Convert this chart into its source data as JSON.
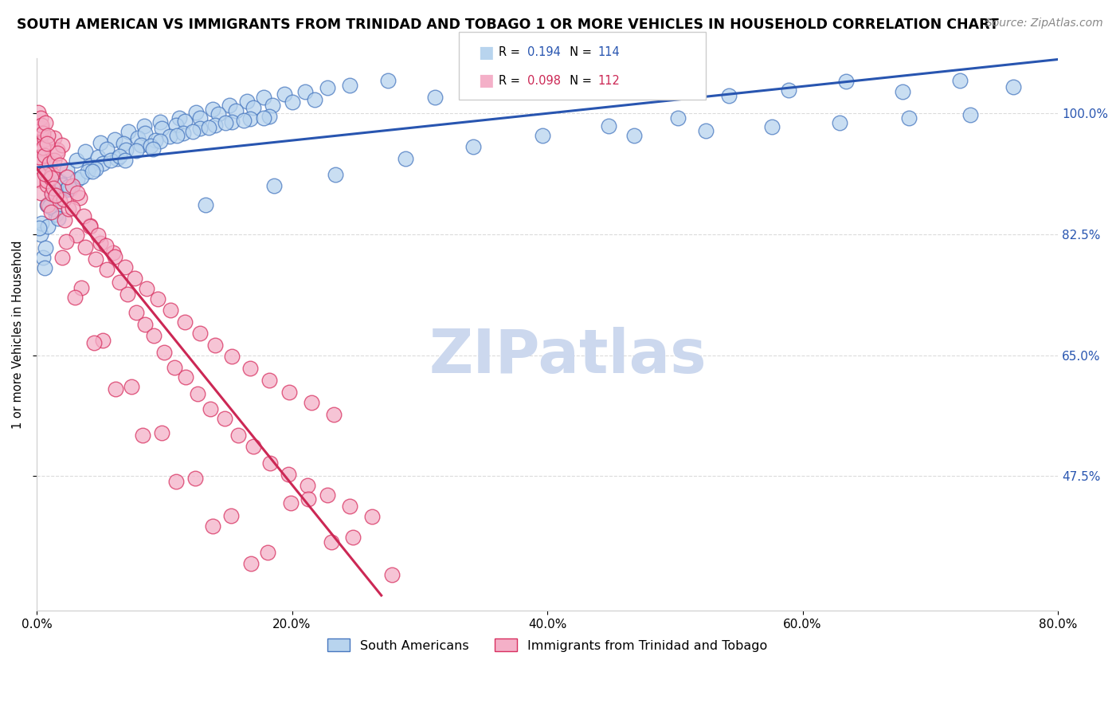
{
  "title": "SOUTH AMERICAN VS IMMIGRANTS FROM TRINIDAD AND TOBAGO 1 OR MORE VEHICLES IN HOUSEHOLD CORRELATION CHART",
  "source": "Source: ZipAtlas.com",
  "ylabel": "1 or more Vehicles in Household",
  "xlim": [
    0.0,
    80.0
  ],
  "ylim": [
    28.0,
    108.0
  ],
  "yticks": [
    47.5,
    65.0,
    82.5,
    100.0
  ],
  "xticks": [
    0.0,
    20.0,
    40.0,
    60.0,
    80.0
  ],
  "blue_R": 0.194,
  "blue_N": 114,
  "pink_R": 0.098,
  "pink_N": 112,
  "legend_labels": [
    "South Americans",
    "Immigrants from Trinidad and Tobago"
  ],
  "blue_color": "#b8d4ee",
  "pink_color": "#f4b0c8",
  "blue_edge_color": "#4878c0",
  "pink_edge_color": "#d83060",
  "blue_line_color": "#2855b0",
  "pink_line_color": "#cc2855",
  "watermark_color": "#ccd8ee",
  "title_fontsize": 12.5,
  "source_fontsize": 10,
  "blue_scatter_x": [
    0.3,
    0.5,
    0.8,
    0.4,
    1.2,
    0.6,
    1.8,
    0.9,
    2.4,
    1.5,
    3.1,
    0.7,
    2.0,
    1.1,
    3.8,
    1.4,
    4.2,
    2.3,
    5.0,
    1.7,
    4.8,
    3.2,
    6.1,
    2.6,
    5.5,
    4.0,
    7.2,
    3.5,
    6.8,
    5.2,
    8.4,
    4.6,
    7.9,
    6.3,
    9.7,
    5.8,
    8.5,
    7.0,
    11.2,
    6.5,
    9.8,
    8.2,
    12.5,
    7.8,
    10.9,
    9.3,
    13.8,
    8.9,
    11.6,
    10.4,
    15.1,
    9.7,
    12.8,
    11.5,
    16.5,
    11.0,
    14.2,
    12.8,
    17.8,
    12.2,
    15.6,
    14.0,
    19.4,
    13.5,
    17.0,
    15.3,
    21.0,
    14.8,
    18.5,
    16.7,
    22.8,
    16.2,
    20.0,
    18.2,
    24.5,
    17.8,
    21.8,
    27.5,
    31.2,
    35.8,
    40.4,
    45.1,
    49.8,
    54.2,
    58.9,
    63.4,
    67.8,
    72.3,
    76.5,
    46.8,
    52.4,
    57.6,
    62.9,
    68.3,
    73.1,
    0.2,
    1.0,
    2.5,
    4.4,
    6.9,
    9.1,
    13.2,
    18.6,
    23.4,
    28.9,
    34.2,
    39.6,
    44.8,
    50.2
  ],
  "blue_scatter_y": [
    82.5,
    79.2,
    86.8,
    84.1,
    88.4,
    77.6,
    90.2,
    83.7,
    91.8,
    85.4,
    93.2,
    80.5,
    89.6,
    87.3,
    94.5,
    86.2,
    92.4,
    88.9,
    95.8,
    84.8,
    93.7,
    90.4,
    96.2,
    89.1,
    94.8,
    91.6,
    97.4,
    90.8,
    95.6,
    92.8,
    98.2,
    91.9,
    96.4,
    93.5,
    98.8,
    93.2,
    97.1,
    94.7,
    99.4,
    93.8,
    97.8,
    95.4,
    100.1,
    94.6,
    98.3,
    96.1,
    100.6,
    95.3,
    98.9,
    96.7,
    101.2,
    96.0,
    99.4,
    97.2,
    101.8,
    96.8,
    99.9,
    97.8,
    102.3,
    97.4,
    100.4,
    98.3,
    102.8,
    98.0,
    100.8,
    98.8,
    103.2,
    98.6,
    101.2,
    99.2,
    103.7,
    99.0,
    101.6,
    99.6,
    104.1,
    99.4,
    102.0,
    104.8,
    102.4,
    103.5,
    104.2,
    103.8,
    104.9,
    102.6,
    103.4,
    104.6,
    103.2,
    104.8,
    103.9,
    96.8,
    97.5,
    98.1,
    98.7,
    99.3,
    99.8,
    83.4,
    86.5,
    89.4,
    91.6,
    93.2,
    94.8,
    86.8,
    89.5,
    91.2,
    93.5,
    95.2,
    96.8,
    98.2,
    99.4
  ],
  "pink_scatter_x": [
    0.1,
    0.2,
    0.3,
    0.1,
    0.4,
    0.2,
    0.5,
    0.3,
    0.6,
    0.2,
    0.7,
    0.4,
    0.8,
    0.3,
    0.9,
    0.5,
    1.0,
    0.4,
    1.2,
    0.6,
    1.4,
    0.8,
    1.6,
    0.5,
    1.8,
    1.0,
    2.0,
    0.7,
    2.2,
    1.2,
    2.5,
    0.9,
    2.8,
    1.4,
    3.1,
    1.1,
    3.4,
    1.6,
    3.8,
    1.3,
    4.2,
    1.8,
    4.6,
    2.1,
    5.0,
    2.4,
    5.5,
    2.8,
    6.0,
    3.2,
    6.5,
    3.7,
    7.1,
    4.2,
    7.8,
    4.8,
    8.5,
    5.4,
    9.2,
    6.1,
    10.0,
    6.9,
    10.8,
    7.7,
    11.7,
    8.6,
    12.6,
    9.5,
    13.6,
    10.5,
    14.7,
    11.6,
    15.8,
    12.8,
    17.0,
    14.0,
    18.3,
    15.3,
    19.7,
    16.7,
    21.2,
    18.2,
    22.8,
    19.8,
    24.5,
    21.5,
    26.3,
    23.3,
    0.8,
    1.5,
    2.3,
    3.5,
    5.2,
    7.4,
    9.8,
    12.4,
    15.2,
    18.1,
    21.3,
    24.8,
    27.8,
    0.6,
    1.1,
    2.0,
    3.0,
    4.5,
    6.2,
    8.3,
    10.9,
    13.8,
    16.8,
    19.9,
    23.1
  ],
  "pink_scatter_y": [
    98.2,
    95.4,
    92.8,
    100.1,
    97.6,
    90.3,
    94.8,
    88.5,
    96.2,
    93.7,
    91.4,
    97.8,
    89.6,
    99.4,
    86.8,
    95.1,
    92.6,
    98.3,
    88.4,
    93.9,
    96.5,
    90.2,
    94.7,
    97.1,
    87.3,
    92.8,
    95.4,
    98.6,
    84.6,
    91.3,
    86.2,
    96.8,
    89.5,
    93.2,
    82.4,
    90.7,
    87.8,
    94.3,
    80.6,
    89.2,
    83.8,
    92.5,
    78.9,
    87.6,
    81.2,
    90.8,
    77.4,
    86.3,
    79.8,
    88.5,
    75.6,
    85.1,
    73.8,
    83.7,
    71.2,
    82.4,
    69.5,
    80.9,
    67.8,
    79.3,
    65.4,
    77.8,
    63.2,
    76.2,
    61.8,
    74.6,
    59.4,
    73.1,
    57.2,
    71.5,
    55.8,
    69.8,
    53.4,
    68.2,
    51.8,
    66.5,
    49.4,
    64.8,
    47.8,
    63.1,
    46.2,
    61.4,
    44.8,
    59.7,
    43.2,
    58.1,
    41.6,
    56.4,
    95.6,
    88.2,
    81.4,
    74.8,
    67.2,
    60.5,
    53.8,
    47.2,
    41.8,
    36.4,
    44.2,
    38.6,
    33.2,
    91.3,
    85.7,
    79.2,
    73.4,
    66.8,
    60.1,
    53.4,
    46.7,
    40.2,
    34.8,
    43.6,
    37.9
  ]
}
